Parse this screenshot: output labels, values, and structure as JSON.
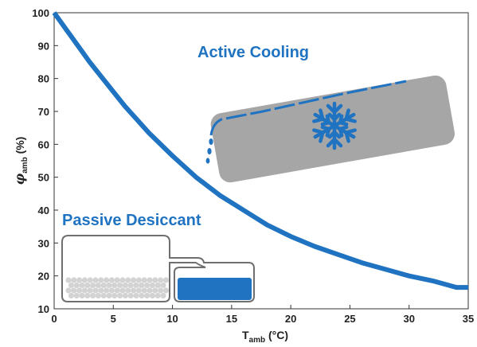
{
  "chart_data": {
    "type": "line",
    "title": "",
    "xlabel": {
      "main": "T",
      "sub": "amb",
      "unit": " (°C)"
    },
    "ylabel": {
      "main": "φ",
      "sub": "amb",
      "unit": " (%)"
    },
    "xlim": [
      0,
      35
    ],
    "ylim": [
      10,
      100
    ],
    "xticks": [
      "0",
      "5",
      "10",
      "15",
      "20",
      "25",
      "30",
      "35"
    ],
    "yticks": [
      "10",
      "20",
      "30",
      "40",
      "50",
      "60",
      "70",
      "80",
      "90",
      "100"
    ],
    "grid": false,
    "series": [
      {
        "color": "#1f73c1",
        "x": [
          0,
          1,
          2,
          3,
          4,
          5,
          6,
          7,
          8,
          9,
          10,
          12,
          14,
          16,
          18,
          20,
          22,
          24,
          26,
          28,
          30,
          32,
          33,
          34,
          35
        ],
        "y": [
          100,
          95,
          90,
          85,
          80.5,
          76,
          71.5,
          67.5,
          63.5,
          60,
          56.5,
          50,
          44.5,
          40,
          35.5,
          32,
          29,
          26.5,
          24,
          22,
          20,
          18.5,
          17.5,
          16.5,
          16.5
        ]
      }
    ],
    "annotations": {
      "upper_region": "Active Cooling",
      "lower_region": "Passive Desiccant"
    },
    "colors": {
      "accent": "#1f73c1",
      "device_gray": "#a6a6a7",
      "desiccant_beads": "#d3d3d3",
      "water_fill": "#1f73c1"
    },
    "icons": [
      "snowflake-icon",
      "condensation-drops-icon",
      "desiccant-container-icon",
      "water-container-icon"
    ]
  }
}
